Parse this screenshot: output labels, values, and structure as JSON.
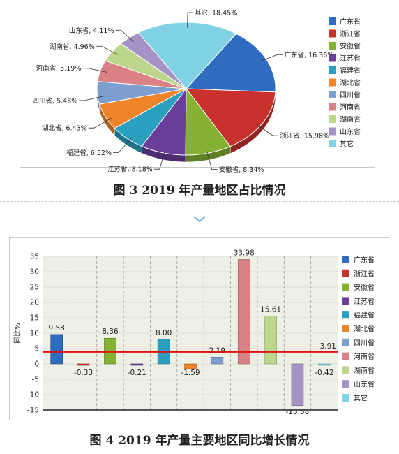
{
  "captions": {
    "fig3": "图 3   2019 年产量地区占比情况",
    "fig4": "图 4   2019 年产量主要地区同比增长情况"
  },
  "regions": [
    "广东省",
    "浙江省",
    "安徽省",
    "江苏省",
    "福建省",
    "湖北省",
    "四川省",
    "河南省",
    "湖南省",
    "山东省",
    "其它"
  ],
  "colors": [
    "#2f6bbf",
    "#c9312c",
    "#86b233",
    "#6a3e9b",
    "#2aa0be",
    "#f0842a",
    "#7d9fd0",
    "#d98185",
    "#bcd78b",
    "#a693c6",
    "#82d2e6"
  ],
  "chart_data": [
    {
      "type": "pie",
      "categories": [
        "广东省",
        "浙江省",
        "安徽省",
        "江苏省",
        "福建省",
        "湖北省",
        "四川省",
        "河南省",
        "湖南省",
        "山东省",
        "其它"
      ],
      "values": [
        16.36,
        15.98,
        8.34,
        8.18,
        6.52,
        6.43,
        5.48,
        5.19,
        4.96,
        4.11,
        18.45
      ],
      "labels": [
        "广东省, 16.36%",
        "浙江省, 15.98%",
        "安徽省, 8.34%",
        "江苏省, 8.18%",
        "福建省, 6.52%",
        "湖北省, 6.43%",
        "四川省, 5.48%",
        "河南省, 5.19%",
        "湖南省, 4.96%",
        "山东省, 4.11%",
        "其它, 18.45%"
      ],
      "legend": "right"
    },
    {
      "type": "bar",
      "categories": [
        "广东省",
        "浙江省",
        "安徽省",
        "江苏省",
        "福建省",
        "湖北省",
        "四川省",
        "河南省",
        "湖南省",
        "山东省",
        "其它"
      ],
      "values": [
        9.58,
        -0.33,
        8.36,
        -0.21,
        8.0,
        -1.59,
        2.19,
        33.98,
        15.61,
        -13.58,
        -0.42
      ],
      "value_labels": [
        "9.58",
        "-0.33",
        "8.36",
        "-0.21",
        "8.00",
        "-1.59",
        "2.19",
        "33.98",
        "15.61",
        "-13.58",
        "-0.42"
      ],
      "ylabel": "同比%",
      "ylim": [
        -15,
        35
      ],
      "yticks": [
        "35",
        "30",
        "25",
        "20",
        "15",
        "10",
        "5",
        "0",
        "-5",
        "-10",
        "-15"
      ],
      "reference_line": {
        "value": 3.91,
        "label": "3.91",
        "color": "#dd1111"
      },
      "grid": true,
      "legend": "right"
    }
  ]
}
